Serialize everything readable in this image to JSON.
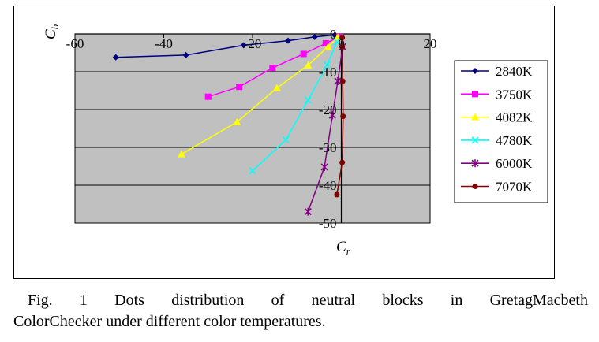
{
  "chart_data": {
    "type": "line",
    "title": "",
    "xlabel": "C",
    "xlabel_sub": "r",
    "ylabel": "C",
    "ylabel_sub": "b",
    "xlim": [
      -60,
      20
    ],
    "ylim": [
      -50,
      0
    ],
    "x_ticks": [
      -60,
      -40,
      -20,
      0,
      20
    ],
    "x_tick_labels": [
      "-60",
      "-40",
      "-20",
      "0",
      "20"
    ],
    "y_ticks": [
      0,
      -10,
      -20,
      -30,
      -40,
      -50
    ],
    "y_tick_labels": [
      "0",
      "-10",
      "-20",
      "-30",
      "-40",
      "-50"
    ],
    "grid": true,
    "plot_background": "#c0c0c0",
    "legend_position": "right",
    "series": [
      {
        "name": "2840K",
        "color": "#000080",
        "marker": "diamond",
        "x": [
          -50.8,
          -35,
          -22,
          -12,
          -6,
          -1.5
        ],
        "y": [
          -6.2,
          -5.6,
          -3,
          -1.8,
          -0.8,
          -0.3
        ]
      },
      {
        "name": "3750K",
        "color": "#ff00ff",
        "marker": "square",
        "x": [
          -30,
          -23,
          -15.5,
          -8.5,
          -3.5,
          -0.5
        ],
        "y": [
          -16.6,
          -14,
          -9,
          -5.3,
          -2.5,
          -0.8
        ]
      },
      {
        "name": "4082K",
        "color": "#ffff00",
        "marker": "triangle",
        "x": [
          -36,
          -23.5,
          -14.5,
          -7.5,
          -3,
          -0.8
        ],
        "y": [
          -31.8,
          -23.3,
          -14.3,
          -8.3,
          -3.4,
          -0.9
        ]
      },
      {
        "name": "4780K",
        "color": "#00ffff",
        "marker": "x",
        "x": [
          -20,
          -12.5,
          -7.5,
          -3.2,
          -1
        ],
        "y": [
          -36.2,
          -28,
          -17.5,
          -8.2,
          -2.1
        ]
      },
      {
        "name": "6000K",
        "color": "#800080",
        "marker": "star",
        "x": [
          -7.5,
          -3.8,
          -2,
          -0.8,
          0.3
        ],
        "y": [
          -47,
          -35.2,
          -21.5,
          -12.5,
          -3.4
        ]
      },
      {
        "name": "7070K",
        "color": "#800000",
        "marker": "circle",
        "x": [
          -1,
          0.2,
          0.4,
          0.3,
          0.2,
          0.2
        ],
        "y": [
          -42.5,
          -34,
          -21.8,
          -12.5,
          -3.5,
          -1
        ]
      }
    ]
  },
  "caption": {
    "line1": "Fig. 1 Dots distribution of neutral blocks in GretagMacbeth",
    "line2": "ColorChecker under different color temperatures."
  }
}
